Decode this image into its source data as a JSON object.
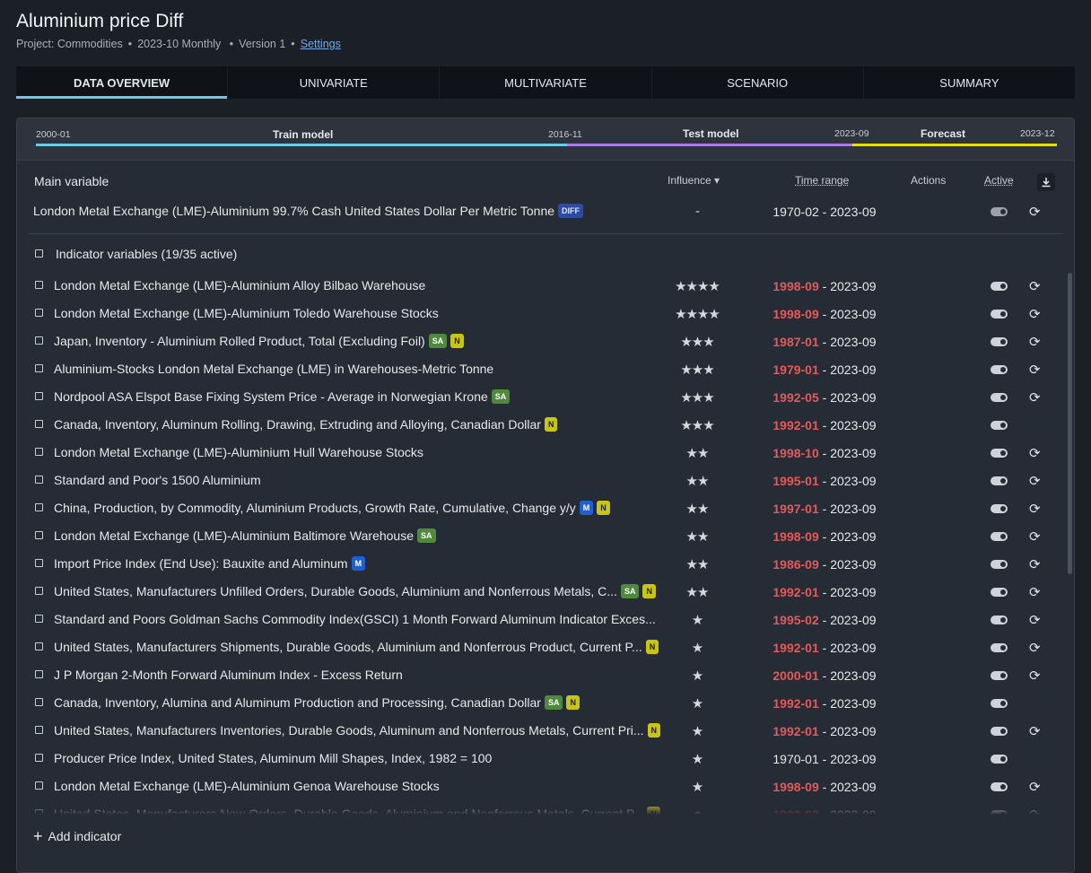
{
  "header": {
    "title": "Aluminium price Diff",
    "project": "Project: Commodities",
    "period": "2023-10 Monthly",
    "version": "Version 1",
    "settings": "Settings"
  },
  "tabs": [
    {
      "label": "DATA OVERVIEW",
      "active": true
    },
    {
      "label": "UNIVARIATE"
    },
    {
      "label": "MULTIVARIATE"
    },
    {
      "label": "SCENARIO"
    },
    {
      "label": "SUMMARY"
    }
  ],
  "timeline": {
    "start": "2000-01",
    "train_label": "Train model",
    "train_end": "2016-11",
    "test_label": "Test model",
    "test_end": "2023-09",
    "forecast_label": "Forecast",
    "forecast_end": "2023-12",
    "colors": {
      "train": "#6cc8e6",
      "test": "#a77ee0",
      "forecast": "#e2dd1f"
    }
  },
  "columns": {
    "main_variable": "Main variable",
    "influence": "Influence",
    "time_range": "Time range",
    "actions": "Actions",
    "active": "Active"
  },
  "main_variable": {
    "name": "London Metal Exchange (LME)-Aluminium 99.7% Cash United States Dollar Per Metric Tonne",
    "badge": "DIFF",
    "influence": "-",
    "range": "1970-02 - 2023-09"
  },
  "indicators_header": "Indicator variables (19/35 active)",
  "indicators": [
    {
      "name": "London Metal Exchange (LME)-Aluminium Alloy Bilbao Warehouse",
      "badges": [],
      "stars": "★★★★",
      "start": "1998-09",
      "end": "2023-09",
      "refresh": true
    },
    {
      "name": "London Metal Exchange (LME)-Aluminium Toledo Warehouse Stocks",
      "badges": [],
      "stars": "★★★★",
      "start": "1998-09",
      "end": "2023-09",
      "refresh": true
    },
    {
      "name": "Japan, Inventory - Aluminium Rolled Product, Total (Excluding Foil)",
      "badges": [
        "SA",
        "N"
      ],
      "stars": "★★★",
      "start": "1987-01",
      "end": "2023-09",
      "refresh": true
    },
    {
      "name": "Aluminium-Stocks London Metal Exchange (LME) in Warehouses-Metric Tonne",
      "badges": [],
      "stars": "★★★",
      "start": "1979-01",
      "end": "2023-09",
      "refresh": true
    },
    {
      "name": "Nordpool ASA Elspot Base Fixing System Price - Average in Norwegian Krone",
      "badges": [
        "SA"
      ],
      "stars": "★★★",
      "start": "1992-05",
      "end": "2023-09",
      "refresh": true
    },
    {
      "name": "Canada, Inventory, Aluminum Rolling, Drawing, Extruding and Alloying, Canadian Dollar",
      "badges": [
        "N"
      ],
      "stars": "★★★",
      "start": "1992-01",
      "end": "2023-09",
      "refresh": false
    },
    {
      "name": "London Metal Exchange (LME)-Aluminium Hull Warehouse Stocks",
      "badges": [],
      "stars": "★★",
      "start": "1998-10",
      "end": "2023-09",
      "refresh": true
    },
    {
      "name": "Standard and Poor's 1500 Aluminium",
      "badges": [],
      "stars": "★★",
      "start": "1995-01",
      "end": "2023-09",
      "refresh": true
    },
    {
      "name": "China, Production, by Commodity, Aluminium Products, Growth Rate, Cumulative, Change y/y",
      "badges": [
        "M",
        "N"
      ],
      "stars": "★★",
      "start": "1997-01",
      "end": "2023-09",
      "refresh": true
    },
    {
      "name": "London Metal Exchange (LME)-Aluminium Baltimore Warehouse",
      "badges": [
        "SA"
      ],
      "stars": "★★",
      "start": "1998-09",
      "end": "2023-09",
      "refresh": true
    },
    {
      "name": "Import Price Index (End Use): Bauxite and Aluminum",
      "badges": [
        "M"
      ],
      "stars": "★★",
      "start": "1986-09",
      "end": "2023-09",
      "refresh": true
    },
    {
      "name": "United States, Manufacturers Unfilled Orders, Durable Goods, Aluminium and Nonferrous Metals, C...",
      "badges": [
        "SA",
        "N"
      ],
      "stars": "★★",
      "start": "1992-01",
      "end": "2023-09",
      "refresh": true
    },
    {
      "name": "Standard and Poors Goldman Sachs Commodity Index(GSCI) 1 Month Forward Aluminum Indicator Exces...",
      "badges": [],
      "stars": "★",
      "start": "1995-02",
      "end": "2023-09",
      "refresh": true
    },
    {
      "name": "United States, Manufacturers Shipments, Durable Goods, Aluminium and Nonferrous Product, Current P...",
      "badges": [
        "N"
      ],
      "stars": "★",
      "start": "1992-01",
      "end": "2023-09",
      "refresh": true
    },
    {
      "name": "J P Morgan 2-Month Forward Aluminum Index - Excess Return",
      "badges": [],
      "stars": "★",
      "start": "2000-01",
      "end": "2023-09",
      "refresh": true
    },
    {
      "name": "Canada, Inventory, Alumina and Aluminum Production and Processing, Canadian Dollar",
      "badges": [
        "SA",
        "N"
      ],
      "stars": "★",
      "start": "1992-01",
      "end": "2023-09",
      "refresh": false
    },
    {
      "name": "United States, Manufacturers Inventories, Durable Goods, Aluminum and Nonferrous Metals, Current Pri...",
      "badges": [
        "N"
      ],
      "stars": "★",
      "start": "1992-01",
      "end": "2023-09",
      "refresh": true
    },
    {
      "name": "Producer Price Index, United States, Aluminum Mill Shapes, Index, 1982 = 100",
      "badges": [],
      "stars": "★",
      "start": "1970-01",
      "end": "2023-09",
      "refresh": false,
      "start_normal": true
    },
    {
      "name": "London Metal Exchange (LME)-Aluminium Genoa Warehouse Stocks",
      "badges": [],
      "stars": "★",
      "start": "1998-09",
      "end": "2023-09",
      "refresh": true
    },
    {
      "name": "United States, Manufacturers New Orders, Durable Goods, Aluminium and Nonferrous Metals, Current P...",
      "badges": [
        "N"
      ],
      "stars": "●",
      "start": "1992-02",
      "end": "2023-09",
      "refresh": true
    }
  ],
  "add_indicator": "Add indicator"
}
